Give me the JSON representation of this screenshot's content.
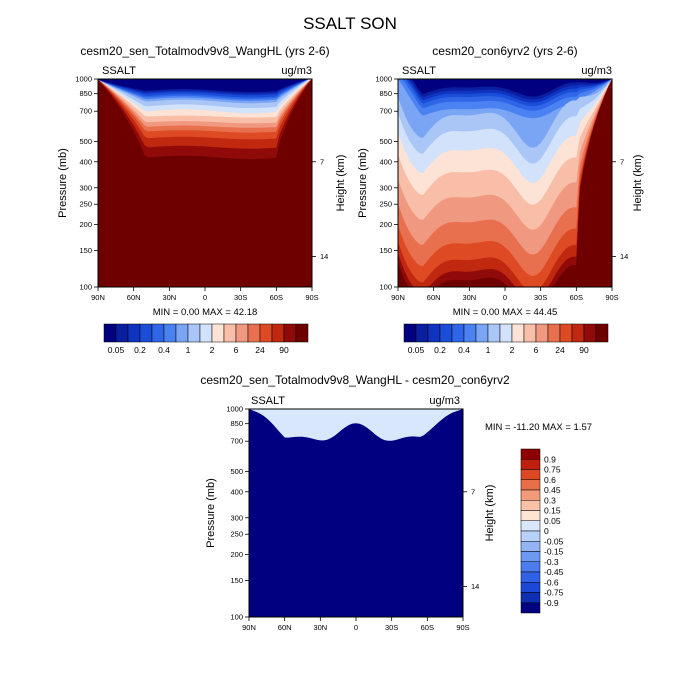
{
  "figure_title": "SSALT SON",
  "colors": {
    "seq_palette": [
      "#000080",
      "#0a1ea0",
      "#0f32c0",
      "#1a4ed9",
      "#2f66e8",
      "#4a82f2",
      "#7aa5f5",
      "#a9c6f7",
      "#d2e2fb",
      "#fde3d6",
      "#f8bea8",
      "#f19880",
      "#e8704e",
      "#dd4a24",
      "#c02810",
      "#900a0a",
      "#6e0000"
    ],
    "div_palette": [
      "#000080",
      "#0f2fb3",
      "#1d47d6",
      "#2f62e6",
      "#4a7ced",
      "#6d99f3",
      "#93b5f6",
      "#b9d0f9",
      "#d9e7fc",
      "#fde4d3",
      "#f9c2a6",
      "#f29a79",
      "#e96f49",
      "#dc4823",
      "#c01f0d",
      "#8e0000"
    ]
  },
  "panels": [
    {
      "title": "cesm20_sen_Totalmodv9v8_WangHL (yrs 2-6)",
      "left_label": "SSALT",
      "right_label": "ug/m3",
      "stats": "MIN =   0.00  MAX =  42.18"
    },
    {
      "title": "cesm20_con6yrv2 (yrs 2-6)",
      "left_label": "SSALT",
      "right_label": "ug/m3",
      "stats": "MIN =   0.00  MAX =  44.45"
    },
    {
      "title": "cesm20_sen_Totalmodv9v8_WangHL - cesm20_con6yrv2",
      "left_label": "SSALT",
      "right_label": "ug/m3",
      "stats": "MIN = -11.20  MAX =   1.57"
    }
  ],
  "chart_data": [
    {
      "type": "heatmap",
      "title": "cesm20_sen_Totalmodv9v8_WangHL (yrs 2-6)",
      "xlabel": "",
      "ylabel": "Pressure (mb)",
      "ylabel_right": "Height (km)",
      "x_ticks": [
        "90N",
        "60N",
        "30N",
        "0",
        "30S",
        "60S",
        "90S"
      ],
      "y_ticks": [
        "100",
        "150",
        "200",
        "250",
        "300",
        "400",
        "500",
        "700",
        "850",
        "1000"
      ],
      "y_ticks_right": [
        "14",
        "7"
      ],
      "y_scale": "log",
      "ylim": [
        1000,
        100
      ],
      "xlim": [
        "90N",
        "90S"
      ],
      "colorbar_levels": [
        "0.05",
        "0.2",
        "0.4",
        "1",
        "2",
        "6",
        "24",
        "90"
      ],
      "min": 0.0,
      "max": 42.18
    },
    {
      "type": "heatmap",
      "title": "cesm20_con6yrv2 (yrs 2-6)",
      "xlabel": "",
      "ylabel": "Pressure (mb)",
      "ylabel_right": "Height (km)",
      "x_ticks": [
        "90N",
        "60N",
        "30N",
        "0",
        "30S",
        "60S",
        "90S"
      ],
      "y_ticks": [
        "100",
        "150",
        "200",
        "250",
        "300",
        "400",
        "500",
        "700",
        "850",
        "1000"
      ],
      "y_ticks_right": [
        "14",
        "7"
      ],
      "y_scale": "log",
      "ylim": [
        1000,
        100
      ],
      "xlim": [
        "90N",
        "90S"
      ],
      "colorbar_levels": [
        "0.05",
        "0.2",
        "0.4",
        "1",
        "2",
        "6",
        "24",
        "90"
      ],
      "min": 0.0,
      "max": 44.45
    },
    {
      "type": "heatmap",
      "title": "cesm20_sen_Totalmodv9v8_WangHL - cesm20_con6yrv2",
      "xlabel": "",
      "ylabel": "Pressure (mb)",
      "ylabel_right": "Height (km)",
      "x_ticks": [
        "90N",
        "60N",
        "30N",
        "0",
        "30S",
        "60S",
        "90S"
      ],
      "y_ticks": [
        "100",
        "150",
        "200",
        "250",
        "300",
        "400",
        "500",
        "700",
        "850",
        "1000"
      ],
      "y_ticks_right": [
        "14",
        "7"
      ],
      "y_scale": "log",
      "ylim": [
        1000,
        100
      ],
      "xlim": [
        "90N",
        "90S"
      ],
      "colorbar_levels": [
        "0.9",
        "0.75",
        "0.6",
        "0.45",
        "0.3",
        "0.15",
        "0.05",
        "0",
        "-0.05",
        "-0.15",
        "-0.3",
        "-0.45",
        "-0.6",
        "-0.75",
        "-0.9"
      ],
      "min": -11.2,
      "max": 1.57
    }
  ]
}
